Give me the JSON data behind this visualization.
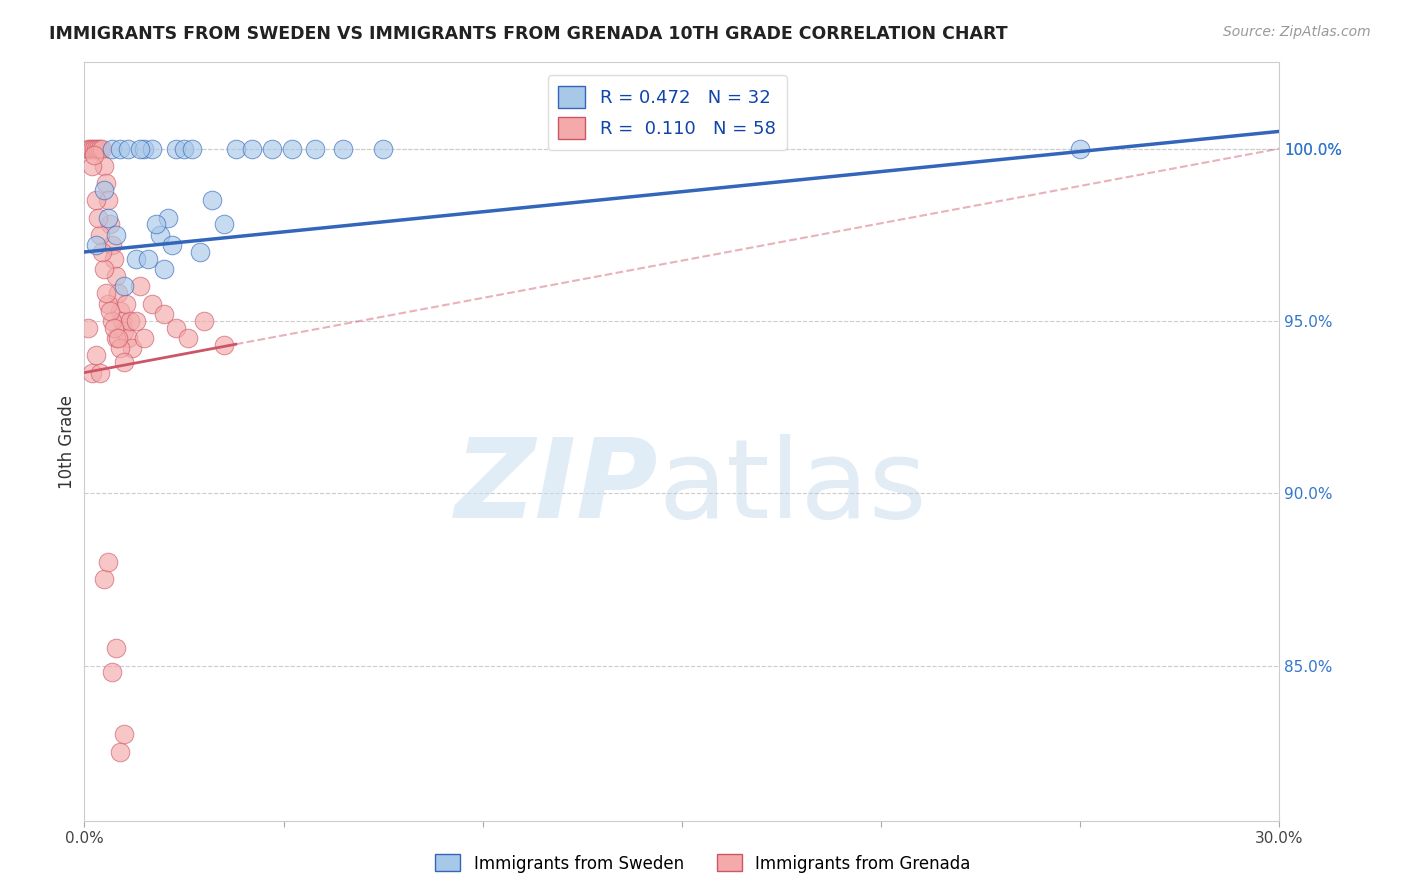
{
  "title": "IMMIGRANTS FROM SWEDEN VS IMMIGRANTS FROM GRENADA 10TH GRADE CORRELATION CHART",
  "source": "Source: ZipAtlas.com",
  "ylabel": "10th Grade",
  "y_tick_vals": [
    85.0,
    90.0,
    95.0,
    100.0
  ],
  "x_range": [
    0.0,
    30.0
  ],
  "y_range": [
    80.5,
    102.5
  ],
  "sweden_R": 0.472,
  "sweden_N": 32,
  "grenada_R": 0.11,
  "grenada_N": 58,
  "sweden_color": "#A8C8E8",
  "grenada_color": "#F4AAAA",
  "sweden_line_color": "#3366BB",
  "grenada_line_color": "#CC5566",
  "sweden_scatter_x": [
    0.3,
    0.5,
    0.7,
    0.9,
    1.1,
    1.3,
    1.5,
    1.7,
    1.9,
    2.1,
    2.3,
    2.5,
    2.7,
    2.9,
    3.2,
    3.5,
    3.8,
    4.2,
    4.7,
    5.2,
    5.8,
    6.5,
    7.5,
    2.0,
    1.8,
    2.2,
    1.0,
    0.6,
    0.8,
    1.4,
    1.6,
    25.0
  ],
  "sweden_scatter_y": [
    97.2,
    98.8,
    100.0,
    100.0,
    100.0,
    96.8,
    100.0,
    100.0,
    97.5,
    98.0,
    100.0,
    100.0,
    100.0,
    97.0,
    98.5,
    97.8,
    100.0,
    100.0,
    100.0,
    100.0,
    100.0,
    100.0,
    100.0,
    96.5,
    97.8,
    97.2,
    96.0,
    98.0,
    97.5,
    100.0,
    96.8,
    100.0
  ],
  "grenada_scatter_x": [
    0.1,
    0.15,
    0.2,
    0.25,
    0.3,
    0.35,
    0.4,
    0.45,
    0.5,
    0.55,
    0.6,
    0.65,
    0.7,
    0.75,
    0.8,
    0.85,
    0.9,
    0.95,
    1.0,
    1.05,
    1.1,
    1.15,
    1.2,
    1.3,
    1.4,
    1.5,
    1.7,
    2.0,
    2.3,
    2.6,
    3.0,
    3.5,
    0.2,
    0.3,
    0.4,
    0.5,
    0.6,
    0.7,
    0.8,
    0.9,
    1.0,
    0.25,
    0.35,
    0.45,
    0.55,
    0.65,
    0.75,
    0.85,
    0.1,
    0.2,
    0.3,
    0.4,
    0.5,
    0.6,
    0.7,
    0.8,
    0.9,
    1.0
  ],
  "grenada_scatter_y": [
    100.0,
    100.0,
    100.0,
    100.0,
    100.0,
    100.0,
    100.0,
    100.0,
    99.5,
    99.0,
    98.5,
    97.8,
    97.2,
    96.8,
    96.3,
    95.8,
    95.3,
    95.0,
    94.7,
    95.5,
    94.5,
    95.0,
    94.2,
    95.0,
    96.0,
    94.5,
    95.5,
    95.2,
    94.8,
    94.5,
    95.0,
    94.3,
    99.5,
    98.5,
    97.5,
    96.5,
    95.5,
    95.0,
    94.5,
    94.2,
    93.8,
    99.8,
    98.0,
    97.0,
    95.8,
    95.3,
    94.8,
    94.5,
    94.8,
    93.5,
    94.0,
    93.5,
    87.5,
    88.0,
    84.8,
    85.5,
    82.5,
    83.0
  ]
}
